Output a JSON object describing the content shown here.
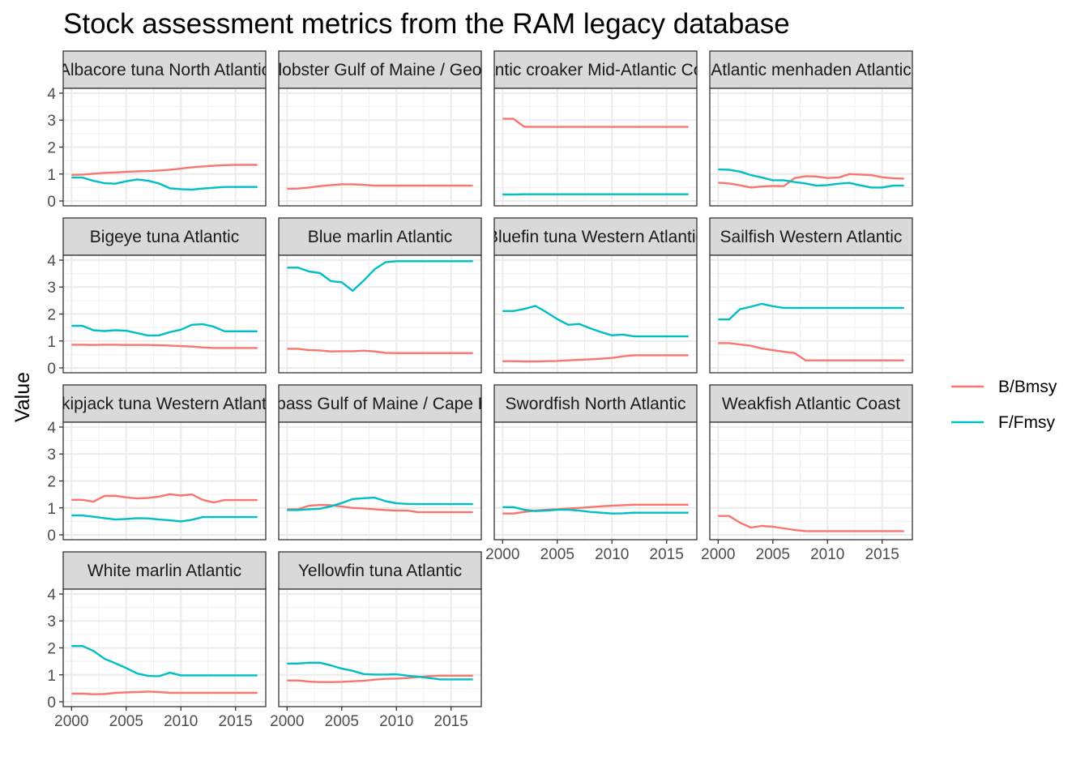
{
  "chart_data": {
    "type": "line",
    "title": "Stock assessment metrics from the RAM legacy database",
    "xlabel": "",
    "ylabel": "Value",
    "xlim": [
      2000,
      2017
    ],
    "ylim": [
      0,
      4
    ],
    "x_ticks": [
      2000,
      2005,
      2010,
      2015
    ],
    "y_ticks": [
      0,
      1,
      2,
      3,
      4
    ],
    "grid": true,
    "legend_position": "right",
    "x": [
      2000,
      2001,
      2002,
      2003,
      2004,
      2005,
      2006,
      2007,
      2008,
      2009,
      2010,
      2011,
      2012,
      2013,
      2014,
      2015,
      2016,
      2017
    ],
    "series_names": [
      "B/Bmsy",
      "F/Fmsy"
    ],
    "series_colors": {
      "B/Bmsy": "#F8766D",
      "F/Fmsy": "#00BFC4"
    },
    "facets": [
      {
        "label": "Albacore tuna North Atlantic",
        "B/Bmsy": [
          0.97,
          0.98,
          1.01,
          1.04,
          1.06,
          1.08,
          1.1,
          1.11,
          1.13,
          1.16,
          1.2,
          1.25,
          1.28,
          1.31,
          1.33,
          1.34,
          1.34,
          1.34
        ],
        "F/Fmsy": [
          0.87,
          0.87,
          0.75,
          0.66,
          0.64,
          0.73,
          0.8,
          0.75,
          0.65,
          0.47,
          0.44,
          0.42,
          0.46,
          0.49,
          0.52,
          0.52,
          0.52,
          0.52
        ]
      },
      {
        "label": "American lobster Gulf of Maine / Georges Bank",
        "B/Bmsy": [
          0.45,
          0.46,
          0.5,
          0.55,
          0.59,
          0.62,
          0.62,
          0.6,
          0.57,
          0.57,
          0.57,
          0.57,
          0.57,
          0.57,
          0.57,
          0.57,
          0.57,
          0.57
        ],
        "F/Fmsy": []
      },
      {
        "label": "Atlantic croaker Mid-Atlantic Coast",
        "B/Bmsy": [
          3.05,
          3.05,
          2.75,
          2.75,
          2.75,
          2.75,
          2.75,
          2.75,
          2.75,
          2.75,
          2.75,
          2.75,
          2.75,
          2.75,
          2.75,
          2.75,
          2.75,
          2.75
        ],
        "F/Fmsy": [
          0.24,
          0.24,
          0.25,
          0.25,
          0.25,
          0.25,
          0.25,
          0.25,
          0.25,
          0.25,
          0.25,
          0.25,
          0.25,
          0.25,
          0.25,
          0.25,
          0.25,
          0.25
        ]
      },
      {
        "label": "Atlantic menhaden Atlantic",
        "B/Bmsy": [
          0.68,
          0.65,
          0.58,
          0.5,
          0.54,
          0.56,
          0.55,
          0.85,
          0.92,
          0.91,
          0.85,
          0.87,
          1.0,
          0.98,
          0.96,
          0.88,
          0.84,
          0.83
        ],
        "F/Fmsy": [
          1.17,
          1.16,
          1.09,
          0.96,
          0.87,
          0.77,
          0.77,
          0.7,
          0.65,
          0.57,
          0.59,
          0.64,
          0.67,
          0.58,
          0.5,
          0.5,
          0.57,
          0.57
        ]
      },
      {
        "label": "Bigeye tuna Atlantic",
        "B/Bmsy": [
          0.86,
          0.86,
          0.85,
          0.86,
          0.86,
          0.85,
          0.85,
          0.85,
          0.84,
          0.83,
          0.81,
          0.79,
          0.76,
          0.74,
          0.74,
          0.74,
          0.74,
          0.74
        ],
        "F/Fmsy": [
          1.56,
          1.56,
          1.4,
          1.37,
          1.4,
          1.38,
          1.29,
          1.2,
          1.21,
          1.33,
          1.42,
          1.6,
          1.62,
          1.53,
          1.36,
          1.36,
          1.36,
          1.36
        ]
      },
      {
        "label": "Blue marlin Atlantic",
        "B/Bmsy": [
          0.71,
          0.71,
          0.66,
          0.65,
          0.61,
          0.62,
          0.62,
          0.64,
          0.61,
          0.56,
          0.55,
          0.55,
          0.55,
          0.55,
          0.55,
          0.55,
          0.55,
          0.55
        ],
        "F/Fmsy": [
          3.72,
          3.72,
          3.58,
          3.52,
          3.22,
          3.18,
          2.86,
          3.24,
          3.66,
          3.92,
          3.96,
          3.96,
          3.96,
          3.96,
          3.96,
          3.96,
          3.96,
          3.96
        ]
      },
      {
        "label": "Bluefin tuna Western Atlantic",
        "B/Bmsy": [
          0.25,
          0.25,
          0.24,
          0.24,
          0.25,
          0.26,
          0.28,
          0.3,
          0.32,
          0.34,
          0.37,
          0.43,
          0.47,
          0.47,
          0.47,
          0.47,
          0.47,
          0.47
        ],
        "F/Fmsy": [
          2.11,
          2.11,
          2.19,
          2.3,
          2.07,
          1.81,
          1.6,
          1.63,
          1.47,
          1.33,
          1.21,
          1.24,
          1.17,
          1.17,
          1.17,
          1.17,
          1.17,
          1.17
        ]
      },
      {
        "label": "Sailfish Western Atlantic",
        "B/Bmsy": [
          0.92,
          0.92,
          0.87,
          0.82,
          0.72,
          0.66,
          0.6,
          0.55,
          0.28,
          0.28,
          0.28,
          0.28,
          0.28,
          0.28,
          0.28,
          0.28,
          0.28,
          0.28
        ],
        "F/Fmsy": [
          1.8,
          1.8,
          2.18,
          2.27,
          2.38,
          2.29,
          2.23,
          2.23,
          2.23,
          2.23,
          2.23,
          2.23,
          2.23,
          2.23,
          2.23,
          2.23,
          2.23,
          2.23
        ]
      },
      {
        "label": "Skipjack tuna Western Atlantic",
        "B/Bmsy": [
          1.3,
          1.3,
          1.23,
          1.44,
          1.45,
          1.39,
          1.35,
          1.37,
          1.42,
          1.51,
          1.46,
          1.5,
          1.3,
          1.2,
          1.29,
          1.29,
          1.29,
          1.29
        ],
        "F/Fmsy": [
          0.72,
          0.72,
          0.67,
          0.62,
          0.57,
          0.59,
          0.62,
          0.61,
          0.57,
          0.54,
          0.5,
          0.56,
          0.66,
          0.66,
          0.66,
          0.66,
          0.66,
          0.66
        ]
      },
      {
        "label": "Striped bass Gulf of Maine / Cape Hatteras",
        "B/Bmsy": [
          0.95,
          0.95,
          1.08,
          1.11,
          1.1,
          1.05,
          1.0,
          0.98,
          0.95,
          0.92,
          0.9,
          0.9,
          0.84,
          0.84,
          0.84,
          0.84,
          0.84,
          0.84
        ],
        "F/Fmsy": [
          0.92,
          0.92,
          0.95,
          0.97,
          1.06,
          1.18,
          1.33,
          1.36,
          1.38,
          1.25,
          1.17,
          1.15,
          1.14,
          1.14,
          1.14,
          1.14,
          1.14,
          1.14
        ]
      },
      {
        "label": "Swordfish North Atlantic",
        "B/Bmsy": [
          0.79,
          0.79,
          0.85,
          0.9,
          0.93,
          0.95,
          0.98,
          1.0,
          1.03,
          1.06,
          1.08,
          1.1,
          1.12,
          1.12,
          1.12,
          1.12,
          1.12,
          1.12
        ],
        "F/Fmsy": [
          1.03,
          1.03,
          0.93,
          0.88,
          0.9,
          0.93,
          0.93,
          0.9,
          0.85,
          0.82,
          0.79,
          0.8,
          0.82,
          0.82,
          0.82,
          0.82,
          0.82,
          0.82
        ]
      },
      {
        "label": "Weakfish Atlantic Coast",
        "B/Bmsy": [
          0.7,
          0.7,
          0.45,
          0.27,
          0.33,
          0.3,
          0.24,
          0.18,
          0.14,
          0.14,
          0.14,
          0.14,
          0.14,
          0.14,
          0.14,
          0.14,
          0.14,
          0.14
        ],
        "F/Fmsy": []
      },
      {
        "label": "White marlin Atlantic",
        "B/Bmsy": [
          0.3,
          0.3,
          0.28,
          0.29,
          0.33,
          0.35,
          0.36,
          0.38,
          0.36,
          0.33,
          0.33,
          0.33,
          0.33,
          0.33,
          0.33,
          0.33,
          0.33,
          0.33
        ],
        "F/Fmsy": [
          2.07,
          2.07,
          1.89,
          1.6,
          1.43,
          1.25,
          1.05,
          0.96,
          0.95,
          1.08,
          0.98,
          0.98,
          0.98,
          0.98,
          0.98,
          0.98,
          0.98,
          0.98
        ]
      },
      {
        "label": "Yellowfin tuna Atlantic",
        "B/Bmsy": [
          0.79,
          0.79,
          0.75,
          0.73,
          0.73,
          0.74,
          0.76,
          0.78,
          0.82,
          0.85,
          0.86,
          0.88,
          0.92,
          0.95,
          0.97,
          0.97,
          0.97,
          0.97
        ],
        "F/Fmsy": [
          1.42,
          1.42,
          1.45,
          1.45,
          1.35,
          1.23,
          1.15,
          1.03,
          1.01,
          1.01,
          1.02,
          0.97,
          0.93,
          0.88,
          0.83,
          0.83,
          0.83,
          0.83
        ]
      }
    ]
  }
}
